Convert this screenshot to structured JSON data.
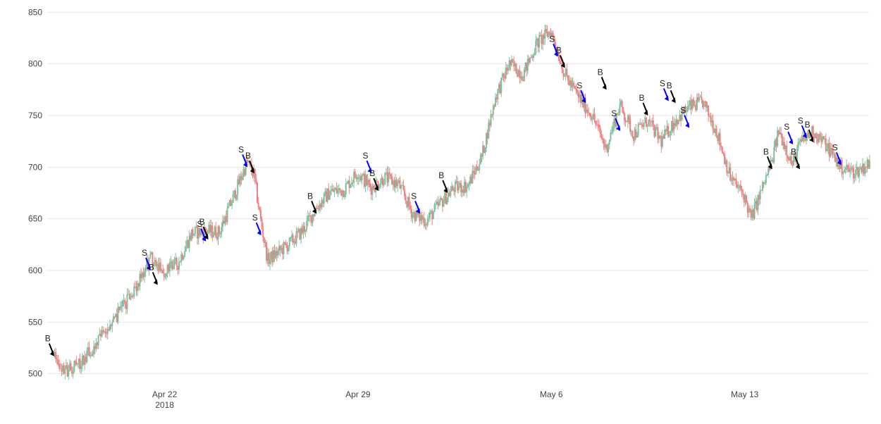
{
  "chart_data": {
    "type": "candlestick",
    "title": "",
    "xlabel": "",
    "ylabel": "",
    "ylim": [
      495,
      855
    ],
    "grid": true,
    "x_tick_labels": [
      {
        "date": "2018-04-22",
        "label": "Apr 22",
        "sublabel": "2018"
      },
      {
        "date": "2018-04-29",
        "label": "Apr 29",
        "sublabel": ""
      },
      {
        "date": "2018-05-06",
        "label": "May 6",
        "sublabel": ""
      },
      {
        "date": "2018-05-13",
        "label": "May 13",
        "sublabel": ""
      }
    ],
    "y_ticks": [
      500,
      550,
      600,
      650,
      700,
      750,
      800,
      850
    ],
    "x_range": [
      "2018-04-17T18:00",
      "2018-05-17T12:00"
    ],
    "colors": {
      "up": "#7fbf9f",
      "down": "#f08080",
      "buy_arrow": "#000000",
      "sell_arrow": "#0000ff",
      "grid": "#e6e6e6"
    },
    "price_path": [
      [
        "2018-04-18T00:00",
        516
      ],
      [
        "2018-04-18T10:00",
        503
      ],
      [
        "2018-04-19T00:00",
        512
      ],
      [
        "2018-04-19T12:00",
        528
      ],
      [
        "2018-04-20T00:00",
        545
      ],
      [
        "2018-04-20T12:00",
        565
      ],
      [
        "2018-04-21T00:00",
        583
      ],
      [
        "2018-04-21T12:00",
        612
      ],
      [
        "2018-04-22T00:00",
        598
      ],
      [
        "2018-04-22T12:00",
        607
      ],
      [
        "2018-04-23T00:00",
        636
      ],
      [
        "2018-04-23T12:00",
        638
      ],
      [
        "2018-04-24T00:00",
        637
      ],
      [
        "2018-04-24T12:00",
        670
      ],
      [
        "2018-04-25T00:00",
        705
      ],
      [
        "2018-04-25T06:00",
        693
      ],
      [
        "2018-04-25T12:00",
        648
      ],
      [
        "2018-04-25T18:00",
        610
      ],
      [
        "2018-04-26T12:00",
        625
      ],
      [
        "2018-04-27T00:00",
        638
      ],
      [
        "2018-04-27T12:00",
        660
      ],
      [
        "2018-04-28T00:00",
        676
      ],
      [
        "2018-04-28T12:00",
        678
      ],
      [
        "2018-04-29T00:00",
        695
      ],
      [
        "2018-04-29T12:00",
        680
      ],
      [
        "2018-04-30T00:00",
        690
      ],
      [
        "2018-04-30T12:00",
        683
      ],
      [
        "2018-05-01T00:00",
        655
      ],
      [
        "2018-05-01T12:00",
        648
      ],
      [
        "2018-05-02T00:00",
        665
      ],
      [
        "2018-05-02T12:00",
        680
      ],
      [
        "2018-05-03T00:00",
        682
      ],
      [
        "2018-05-03T12:00",
        710
      ],
      [
        "2018-05-04T00:00",
        768
      ],
      [
        "2018-05-04T12:00",
        800
      ],
      [
        "2018-05-05T00:00",
        790
      ],
      [
        "2018-05-05T12:00",
        820
      ],
      [
        "2018-05-06T00:00",
        832
      ],
      [
        "2018-05-06T06:00",
        812
      ],
      [
        "2018-05-06T12:00",
        790
      ],
      [
        "2018-05-07T00:00",
        768
      ],
      [
        "2018-05-07T12:00",
        750
      ],
      [
        "2018-05-08T00:00",
        718
      ],
      [
        "2018-05-08T12:00",
        760
      ],
      [
        "2018-05-09T00:00",
        732
      ],
      [
        "2018-05-09T12:00",
        745
      ],
      [
        "2018-05-10T00:00",
        725
      ],
      [
        "2018-05-10T12:00",
        745
      ],
      [
        "2018-05-11T00:00",
        758
      ],
      [
        "2018-05-11T12:00",
        763
      ],
      [
        "2018-05-12T00:00",
        735
      ],
      [
        "2018-05-12T12:00",
        690
      ],
      [
        "2018-05-13T00:00",
        672
      ],
      [
        "2018-05-13T06:00",
        650
      ],
      [
        "2018-05-13T12:00",
        668
      ],
      [
        "2018-05-14T00:00",
        705
      ],
      [
        "2018-05-14T06:00",
        735
      ],
      [
        "2018-05-14T12:00",
        720
      ],
      [
        "2018-05-14T18:00",
        702
      ],
      [
        "2018-05-15T00:00",
        722
      ],
      [
        "2018-05-15T12:00",
        735
      ],
      [
        "2018-05-16T00:00",
        720
      ],
      [
        "2018-05-16T12:00",
        700
      ],
      [
        "2018-05-17T00:00",
        695
      ],
      [
        "2018-05-17T12:00",
        703
      ]
    ],
    "signals": [
      {
        "type": "B",
        "time": "2018-04-18T00:00",
        "price": 517
      },
      {
        "type": "S",
        "time": "2018-04-21T12:00",
        "price": 600
      },
      {
        "type": "B",
        "time": "2018-04-21T18:00",
        "price": 586
      },
      {
        "type": "S",
        "time": "2018-04-23T12:00",
        "price": 628
      },
      {
        "type": "B",
        "time": "2018-04-23T14:00",
        "price": 630
      },
      {
        "type": "S",
        "time": "2018-04-25T00:00",
        "price": 700
      },
      {
        "type": "B",
        "time": "2018-04-25T06:00",
        "price": 694
      },
      {
        "type": "S",
        "time": "2018-04-25T12:00",
        "price": 634
      },
      {
        "type": "B",
        "time": "2018-04-27T12:00",
        "price": 655
      },
      {
        "type": "S",
        "time": "2018-04-29T12:00",
        "price": 694
      },
      {
        "type": "B",
        "time": "2018-04-29T18:00",
        "price": 677
      },
      {
        "type": "S",
        "time": "2018-05-01T06:00",
        "price": 655
      },
      {
        "type": "B",
        "time": "2018-05-02T06:00",
        "price": 675
      },
      {
        "type": "S",
        "time": "2018-05-06T06:00",
        "price": 807
      },
      {
        "type": "B",
        "time": "2018-05-06T12:00",
        "price": 796
      },
      {
        "type": "S",
        "time": "2018-05-07T06:00",
        "price": 762
      },
      {
        "type": "B",
        "time": "2018-05-08T00:00",
        "price": 775
      },
      {
        "type": "S",
        "time": "2018-05-08T12:00",
        "price": 735
      },
      {
        "type": "B",
        "time": "2018-05-09T12:00",
        "price": 750
      },
      {
        "type": "S",
        "time": "2018-05-10T06:00",
        "price": 764
      },
      {
        "type": "B",
        "time": "2018-05-10T12:00",
        "price": 762
      },
      {
        "type": "S",
        "time": "2018-05-11T00:00",
        "price": 738
      },
      {
        "type": "B",
        "time": "2018-05-14T00:00",
        "price": 698
      },
      {
        "type": "S",
        "time": "2018-05-14T18:00",
        "price": 722
      },
      {
        "type": "B",
        "time": "2018-05-15T00:00",
        "price": 698
      },
      {
        "type": "S",
        "time": "2018-05-15T06:00",
        "price": 728
      },
      {
        "type": "B",
        "time": "2018-05-15T12:00",
        "price": 724
      },
      {
        "type": "S",
        "time": "2018-05-16T12:00",
        "price": 702
      }
    ]
  }
}
